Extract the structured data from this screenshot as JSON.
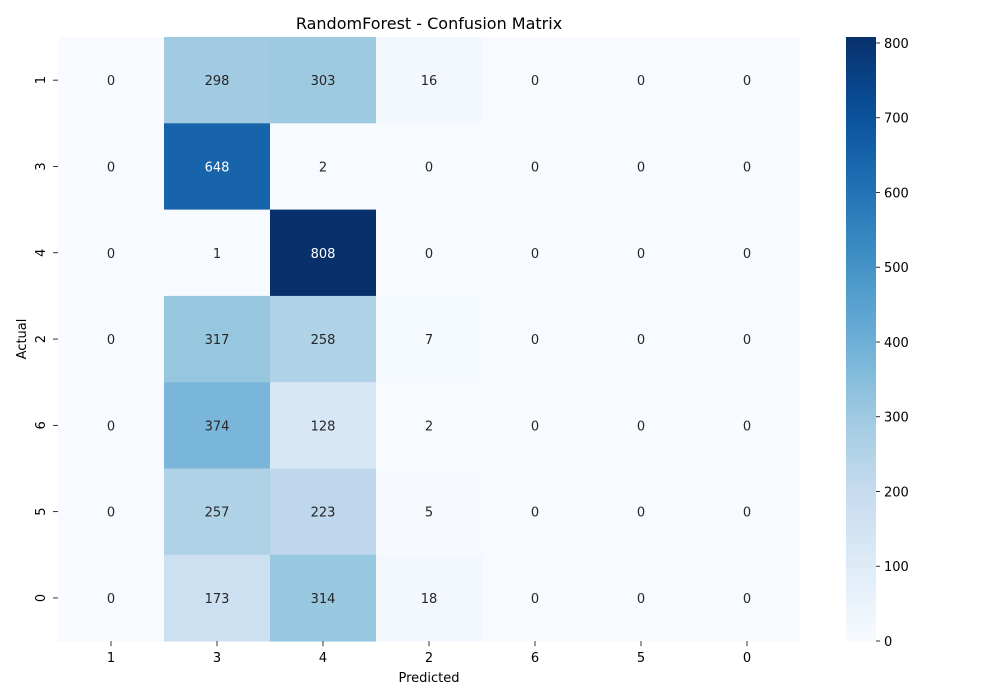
{
  "chart_data": {
    "type": "heatmap",
    "title": "RandomForest - Confusion Matrix",
    "xlabel": "Predicted",
    "ylabel": "Actual",
    "x_categories": [
      "1",
      "3",
      "4",
      "2",
      "6",
      "5",
      "0"
    ],
    "y_categories": [
      "1",
      "3",
      "4",
      "2",
      "6",
      "5",
      "0"
    ],
    "values": [
      [
        0,
        298,
        303,
        16,
        0,
        0,
        0
      ],
      [
        0,
        648,
        2,
        0,
        0,
        0,
        0
      ],
      [
        0,
        1,
        808,
        0,
        0,
        0,
        0
      ],
      [
        0,
        317,
        258,
        7,
        0,
        0,
        0
      ],
      [
        0,
        374,
        128,
        2,
        0,
        0,
        0
      ],
      [
        0,
        257,
        223,
        5,
        0,
        0,
        0
      ],
      [
        0,
        173,
        314,
        18,
        0,
        0,
        0
      ]
    ],
    "colormap": "Blues",
    "colorbar": {
      "range": [
        0,
        808
      ],
      "ticks": [
        0,
        100,
        200,
        300,
        400,
        500,
        600,
        700,
        800
      ]
    },
    "colors": {
      "low": "#f7fbff",
      "high": "#08306b"
    },
    "grid": false,
    "legend": "colorbar-right"
  }
}
